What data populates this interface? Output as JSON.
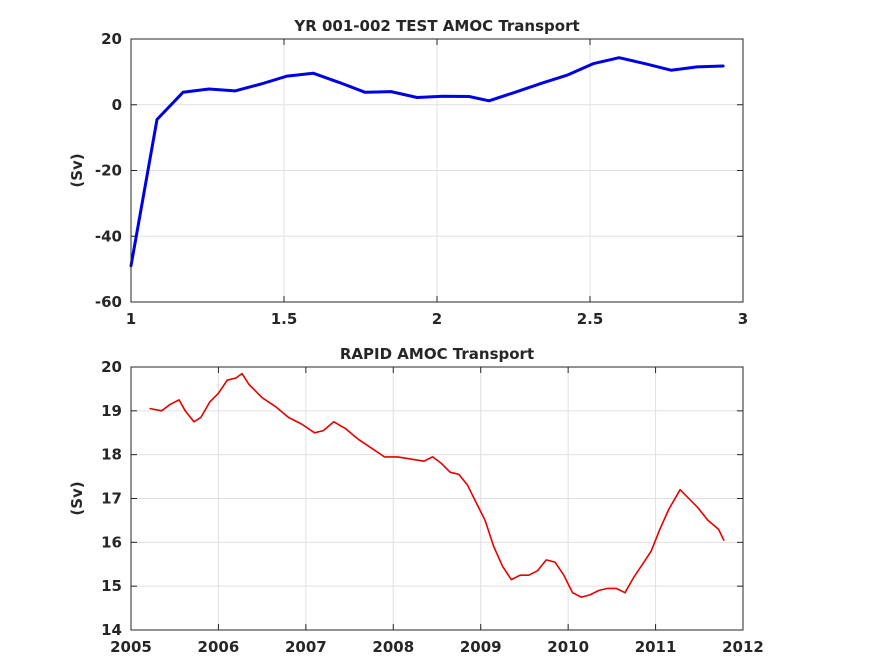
{
  "chart_data": [
    {
      "type": "line",
      "title": "YR 001-002 TEST AMOC Transport",
      "xlabel": "",
      "ylabel": "(Sv)",
      "xlim": [
        1,
        3
      ],
      "ylim": [
        -60,
        20
      ],
      "xticks": [
        1,
        1.5,
        2,
        2.5,
        3
      ],
      "xtick_labels": [
        "1",
        "1.5",
        "2",
        "2.5",
        "3"
      ],
      "yticks": [
        -60,
        -40,
        -20,
        0,
        20
      ],
      "ytick_labels": [
        "-60",
        "-40",
        "-20",
        "0",
        "20"
      ],
      "grid": true,
      "series": [
        {
          "color": "#0000e6",
          "x": [
            1.0,
            1.085,
            1.17,
            1.255,
            1.34,
            1.425,
            1.51,
            1.595,
            1.68,
            1.765,
            1.85,
            1.935,
            2.02,
            2.105,
            2.17,
            2.255,
            2.34,
            2.425,
            2.51,
            2.595,
            2.68,
            2.765,
            2.85,
            2.935
          ],
          "y": [
            -49.0,
            -4.5,
            3.8,
            4.8,
            4.2,
            6.3,
            8.7,
            9.6,
            6.8,
            3.8,
            4.0,
            2.2,
            2.6,
            2.5,
            1.2,
            3.8,
            6.5,
            9.0,
            12.5,
            14.3,
            12.5,
            10.5,
            11.5,
            11.8
          ]
        }
      ]
    },
    {
      "type": "line",
      "title": "RAPID AMOC Transport",
      "xlabel": "",
      "ylabel": "(Sv)",
      "xlim": [
        2005,
        2012
      ],
      "ylim": [
        14,
        20
      ],
      "xticks": [
        2005,
        2006,
        2007,
        2008,
        2009,
        2010,
        2011,
        2012
      ],
      "xtick_labels": [
        "2005",
        "2006",
        "2007",
        "2008",
        "2009",
        "2010",
        "2011",
        "2012"
      ],
      "yticks": [
        14,
        15,
        16,
        17,
        18,
        19,
        20
      ],
      "ytick_labels": [
        "14",
        "15",
        "16",
        "17",
        "18",
        "19",
        "20"
      ],
      "grid": true,
      "series": [
        {
          "color": "#e60000",
          "x": [
            2005.22,
            2005.35,
            2005.45,
            2005.55,
            2005.62,
            2005.72,
            2005.8,
            2005.9,
            2006.0,
            2006.1,
            2006.2,
            2006.27,
            2006.35,
            2006.5,
            2006.65,
            2006.8,
            2006.95,
            2007.1,
            2007.2,
            2007.32,
            2007.45,
            2007.6,
            2007.75,
            2007.9,
            2008.05,
            2008.2,
            2008.35,
            2008.45,
            2008.55,
            2008.65,
            2008.75,
            2008.85,
            2008.95,
            2009.05,
            2009.15,
            2009.25,
            2009.35,
            2009.45,
            2009.55,
            2009.65,
            2009.75,
            2009.85,
            2009.95,
            2010.05,
            2010.15,
            2010.25,
            2010.35,
            2010.45,
            2010.55,
            2010.65,
            2010.75,
            2010.85,
            2010.95,
            2011.05,
            2011.15,
            2011.28,
            2011.38,
            2011.48,
            2011.6,
            2011.72,
            2011.78
          ],
          "y": [
            19.05,
            19.0,
            19.15,
            19.25,
            19.0,
            18.75,
            18.85,
            19.2,
            19.4,
            19.7,
            19.75,
            19.85,
            19.6,
            19.3,
            19.1,
            18.85,
            18.7,
            18.5,
            18.55,
            18.75,
            18.6,
            18.35,
            18.15,
            17.95,
            17.95,
            17.9,
            17.85,
            17.95,
            17.8,
            17.6,
            17.55,
            17.3,
            16.9,
            16.5,
            15.9,
            15.45,
            15.15,
            15.25,
            15.25,
            15.35,
            15.6,
            15.55,
            15.25,
            14.85,
            14.75,
            14.8,
            14.9,
            14.95,
            14.95,
            14.85,
            15.2,
            15.5,
            15.8,
            16.3,
            16.75,
            17.2,
            17.0,
            16.8,
            16.5,
            16.3,
            16.05
          ]
        }
      ]
    }
  ]
}
